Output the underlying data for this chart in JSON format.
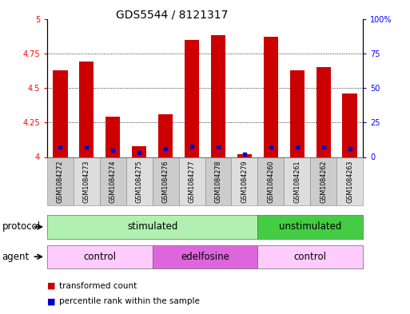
{
  "title": "GDS5544 / 8121317",
  "samples": [
    "GSM1084272",
    "GSM1084273",
    "GSM1084274",
    "GSM1084275",
    "GSM1084276",
    "GSM1084277",
    "GSM1084278",
    "GSM1084279",
    "GSM1084260",
    "GSM1084261",
    "GSM1084262",
    "GSM1084263"
  ],
  "red_values": [
    4.63,
    4.69,
    4.29,
    4.08,
    4.31,
    4.85,
    4.88,
    4.02,
    4.87,
    4.63,
    4.65,
    4.46
  ],
  "blue_values": [
    7,
    7,
    5,
    3,
    6,
    8,
    7,
    2,
    7,
    7,
    7,
    6
  ],
  "ylim_left": [
    4.0,
    5.0
  ],
  "ylim_right": [
    0,
    100
  ],
  "yticks_left": [
    4.0,
    4.25,
    4.5,
    4.75,
    5.0
  ],
  "yticks_right": [
    0,
    25,
    50,
    75,
    100
  ],
  "ytick_labels_left": [
    "4",
    "4.25",
    "4.5",
    "4.75",
    "5"
  ],
  "ytick_labels_right": [
    "0",
    "25",
    "50",
    "75",
    "100%"
  ],
  "bar_width": 0.55,
  "red_color": "#cc0000",
  "blue_color": "#0000cc",
  "bar_bottom": 4.0,
  "protocol_groups": [
    {
      "label": "stimulated",
      "start": 0,
      "end": 7,
      "color": "#b0f0b0"
    },
    {
      "label": "unstimulated",
      "start": 8,
      "end": 11,
      "color": "#44cc44"
    }
  ],
  "agent_groups": [
    {
      "label": "control",
      "start": 0,
      "end": 3,
      "color": "#ffccff"
    },
    {
      "label": "edelfosine",
      "start": 4,
      "end": 7,
      "color": "#dd66dd"
    },
    {
      "label": "control",
      "start": 8,
      "end": 11,
      "color": "#ffccff"
    }
  ],
  "protocol_label": "protocol",
  "agent_label": "agent",
  "legend1": "transformed count",
  "legend2": "percentile rank within the sample",
  "bg_color": "#ffffff",
  "title_fontsize": 10,
  "tick_fontsize": 7,
  "label_fontsize": 8,
  "sample_fontsize": 5.8,
  "row_label_fontsize": 8.5,
  "row_text_fontsize": 8.5
}
